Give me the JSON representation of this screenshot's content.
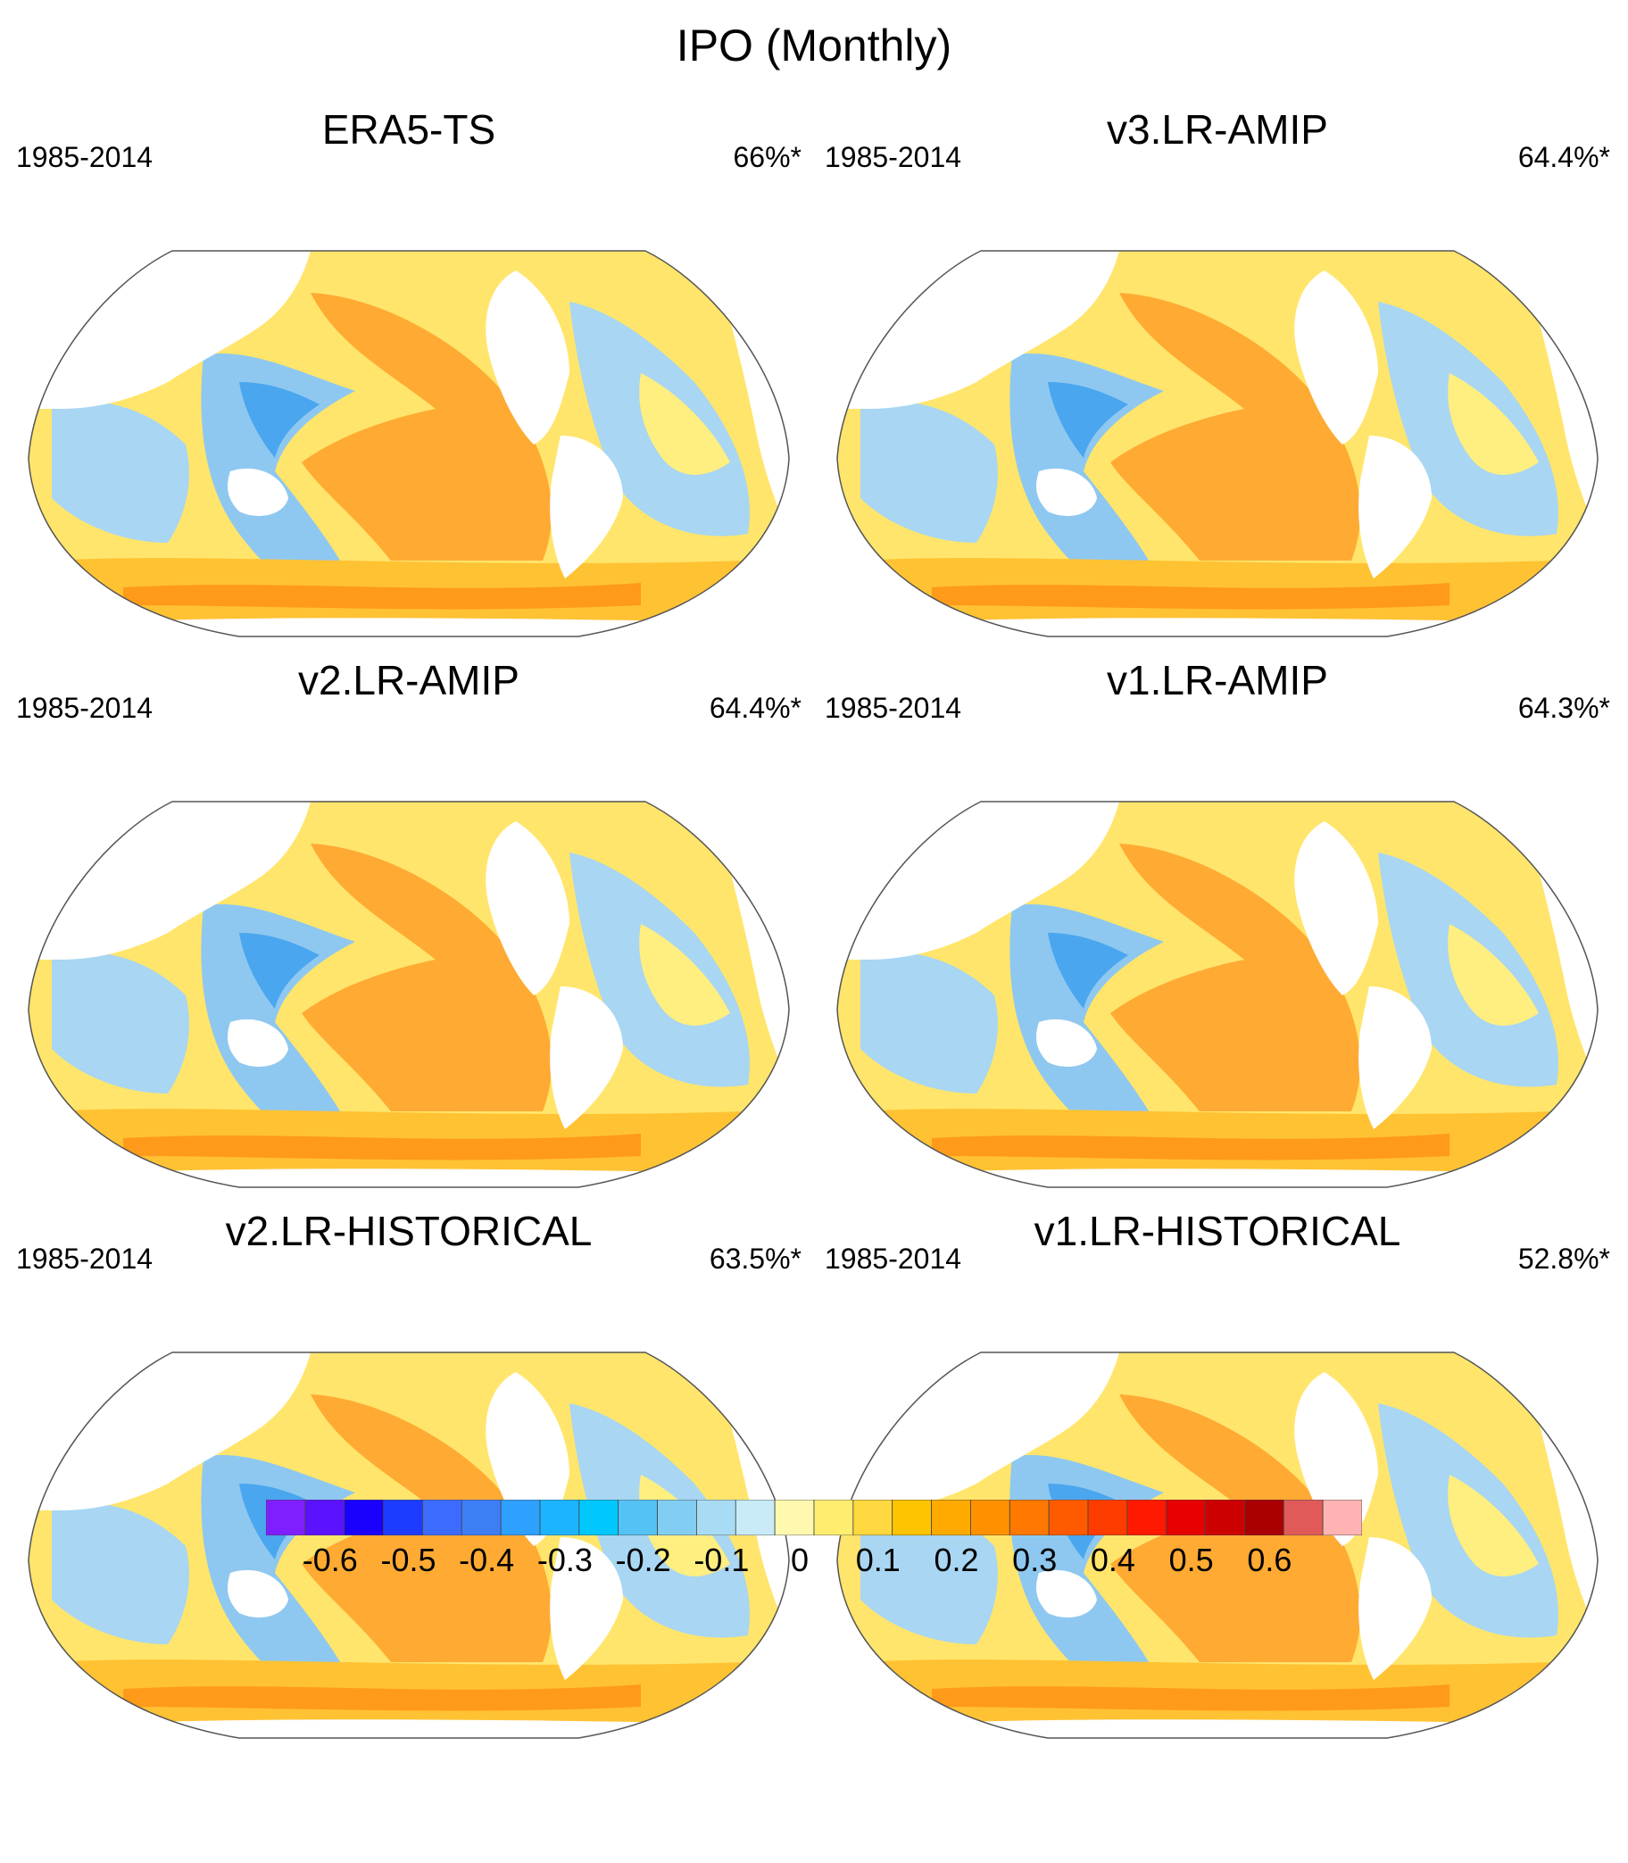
{
  "title": "IPO (Monthly)",
  "panels": [
    {
      "title": "ERA5-TS",
      "period": "1985-2014",
      "percent": "66%*"
    },
    {
      "title": "v3.LR-AMIP",
      "period": "1985-2014",
      "percent": "64.4%*"
    },
    {
      "title": "v2.LR-AMIP",
      "period": "1985-2014",
      "percent": "64.4%*"
    },
    {
      "title": "v1.LR-AMIP",
      "period": "1985-2014",
      "percent": "64.3%*"
    },
    {
      "title": "v2.LR-HISTORICAL",
      "period": "1985-2014",
      "percent": "63.5%*"
    },
    {
      "title": "v1.LR-HISTORICAL",
      "period": "1985-2014",
      "percent": "52.8%*"
    }
  ],
  "colorbar": {
    "colors": [
      "#7f1fff",
      "#5a12ff",
      "#1a00ff",
      "#1e3cff",
      "#3c6cff",
      "#3e7ef5",
      "#2ea0ff",
      "#1cb4ff",
      "#00c8ff",
      "#55c2f5",
      "#82cdf2",
      "#a8dcf5",
      "#c8ebf7",
      "#fff9b0",
      "#ffed70",
      "#ffd840",
      "#ffc400",
      "#ffaa00",
      "#ff9100",
      "#ff7800",
      "#ff5a00",
      "#ff3c00",
      "#ff1900",
      "#e60000",
      "#cc0000",
      "#aa0000",
      "#e05a5a",
      "#ffb3b3"
    ],
    "labels": [
      "-0.6",
      "-0.5",
      "-0.4",
      "-0.3",
      "-0.2",
      "-0.1",
      "0",
      "0.1",
      "0.2",
      "0.3",
      "0.4",
      "0.5",
      "0.6"
    ]
  }
}
